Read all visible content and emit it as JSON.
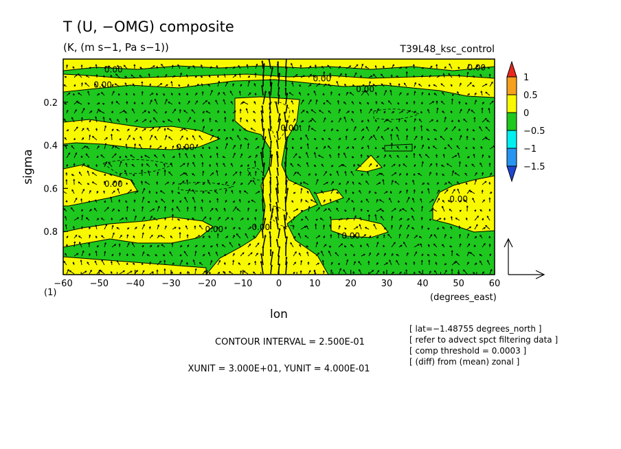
{
  "title": "T (U, −OMG) composite",
  "units": "(K, (m s−1, Pa s−1))",
  "run_name": "T39L48_ksc_control",
  "chart_data": {
    "type": "heatmap",
    "xlabel": "lon",
    "xunit_label": "(degrees_east)",
    "ylabel": "sigma",
    "xlim": [
      -60,
      60
    ],
    "ylim": [
      1.0,
      0.0
    ],
    "x_ticks": [
      -60,
      -50,
      -40,
      -30,
      -20,
      -10,
      0,
      10,
      20,
      30,
      40,
      50,
      60
    ],
    "x_tick_labels": [
      "−60",
      "−50",
      "−40",
      "−30",
      "−20",
      "−10",
      "0",
      "10",
      "20",
      "30",
      "40",
      "50",
      "60"
    ],
    "y_ticks": [
      0.2,
      0.4,
      0.6,
      0.8
    ],
    "y_tick_labels": [
      "0.2",
      "0.4",
      "0.6",
      "0.8"
    ],
    "corner_label": "(1)",
    "colorbar": {
      "labels": [
        "1",
        "0.5",
        "0",
        "−0.5",
        "−1",
        "−1.5"
      ],
      "colors": [
        "#e8281e",
        "#f5a01e",
        "#f8f800",
        "#1ec81e",
        "#00f0f0",
        "#2896f0",
        "#1e46d2"
      ]
    },
    "contour_labels": [
      {
        "text": "0.00",
        "lon": -46,
        "sigma": 0.05
      },
      {
        "text": "0.00",
        "lon": -49,
        "sigma": 0.12
      },
      {
        "text": "0.00",
        "lon": -26,
        "sigma": 0.41
      },
      {
        "text": "0.00",
        "lon": -46,
        "sigma": 0.58
      },
      {
        "text": "0.00",
        "lon": -18,
        "sigma": 0.79
      },
      {
        "text": "0.00",
        "lon": -5,
        "sigma": 0.78
      },
      {
        "text": "0.00",
        "lon": 3,
        "sigma": 0.32
      },
      {
        "text": "0.00",
        "lon": 12,
        "sigma": 0.09
      },
      {
        "text": "0.00",
        "lon": 24,
        "sigma": 0.14
      },
      {
        "text": "0.00",
        "lon": 20,
        "sigma": 0.82
      },
      {
        "text": "0.00",
        "lon": 50,
        "sigma": 0.65
      },
      {
        "text": "0.00",
        "lon": 55,
        "sigma": 0.04
      }
    ],
    "contour_interval_text": "CONTOUR INTERVAL = 2.500E-01",
    "vector_units_text": "XUNIT = 3.000E+01, YUNIT = 4.000E-01",
    "notes": [
      "[ lat=−1.48755 degrees_north ]",
      "[ refer to advect spct filtering data ]",
      "[ comp threshold = 0.0003 ]",
      "[ (diff) from (mean) zonal ]"
    ]
  }
}
